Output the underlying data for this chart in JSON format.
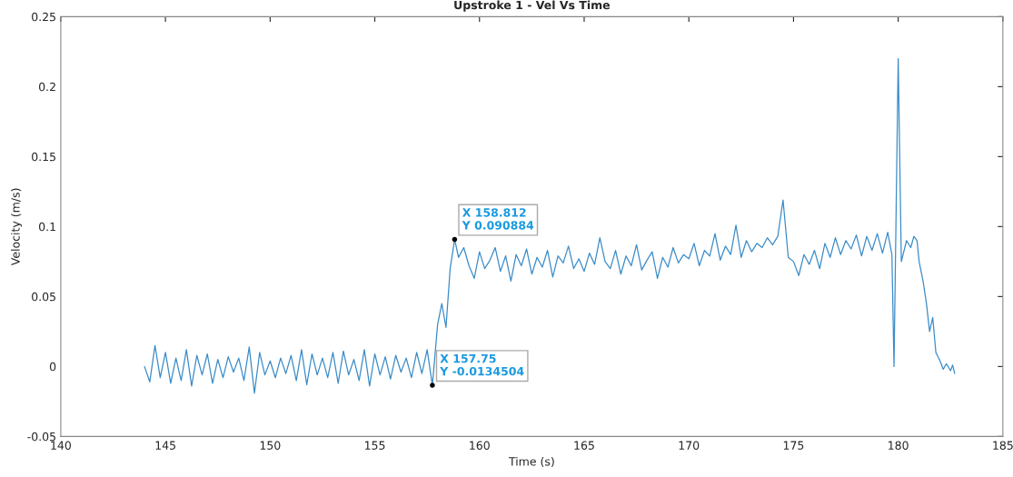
{
  "chart_data": {
    "type": "line",
    "title": "Upstroke 1 - Vel Vs Time",
    "xlabel": "Time (s)",
    "ylabel": "Velocity (m/s)",
    "xlim": [
      140,
      185
    ],
    "xticks": [
      140,
      145,
      150,
      155,
      160,
      165,
      170,
      175,
      180,
      185
    ],
    "ylim": [
      -0.05,
      0.25
    ],
    "yticks": [
      -0.05,
      0,
      0.05,
      0.1,
      0.15,
      0.2,
      0.25
    ],
    "grid": false,
    "legend": false,
    "marker": "none",
    "line_style": "solid",
    "series": [
      {
        "color": "#3a8cc8",
        "x": [
          144.0,
          144.25,
          144.5,
          144.75,
          145.0,
          145.25,
          145.5,
          145.75,
          146.0,
          146.25,
          146.5,
          146.75,
          147.0,
          147.25,
          147.5,
          147.75,
          148.0,
          148.25,
          148.5,
          148.75,
          149.0,
          149.25,
          149.5,
          149.75,
          150.0,
          150.25,
          150.5,
          150.75,
          151.0,
          151.25,
          151.5,
          151.75,
          152.0,
          152.25,
          152.5,
          152.75,
          153.0,
          153.25,
          153.5,
          153.75,
          154.0,
          154.25,
          154.5,
          154.75,
          155.0,
          155.25,
          155.5,
          155.75,
          156.0,
          156.25,
          156.5,
          156.75,
          157.0,
          157.25,
          157.5,
          157.75,
          158.0,
          158.2,
          158.4,
          158.6,
          158.812,
          159.0,
          159.25,
          159.5,
          159.75,
          160.0,
          160.25,
          160.5,
          160.75,
          161.0,
          161.25,
          161.5,
          161.75,
          162.0,
          162.25,
          162.5,
          162.75,
          163.0,
          163.25,
          163.5,
          163.75,
          164.0,
          164.25,
          164.5,
          164.75,
          165.0,
          165.25,
          165.5,
          165.75,
          166.0,
          166.25,
          166.5,
          166.75,
          167.0,
          167.25,
          167.5,
          167.75,
          168.0,
          168.25,
          168.5,
          168.75,
          169.0,
          169.25,
          169.5,
          169.75,
          170.0,
          170.25,
          170.5,
          170.75,
          171.0,
          171.25,
          171.5,
          171.75,
          172.0,
          172.25,
          172.5,
          172.75,
          173.0,
          173.25,
          173.5,
          173.75,
          174.0,
          174.25,
          174.5,
          174.75,
          175.0,
          175.25,
          175.5,
          175.75,
          176.0,
          176.25,
          176.5,
          176.75,
          177.0,
          177.25,
          177.5,
          177.75,
          178.0,
          178.25,
          178.5,
          178.75,
          179.0,
          179.25,
          179.5,
          179.7,
          179.8,
          180.0,
          180.15,
          180.4,
          180.6,
          180.75,
          180.9,
          181.0,
          181.2,
          181.35,
          181.5,
          181.65,
          181.8,
          182.0,
          182.15,
          182.3,
          182.5,
          182.6,
          182.7
        ],
        "values": [
          0,
          -0.011,
          0.015,
          -0.008,
          0.01,
          -0.012,
          0.006,
          -0.01,
          0.012,
          -0.014,
          0.008,
          -0.006,
          0.009,
          -0.012,
          0.005,
          -0.008,
          0.007,
          -0.004,
          0.006,
          -0.01,
          0.014,
          -0.019,
          0.01,
          -0.006,
          0.004,
          -0.008,
          0.006,
          -0.005,
          0.008,
          -0.01,
          0.012,
          -0.013,
          0.009,
          -0.006,
          0.006,
          -0.008,
          0.01,
          -0.012,
          0.011,
          -0.006,
          0.005,
          -0.01,
          0.012,
          -0.014,
          0.009,
          -0.006,
          0.007,
          -0.009,
          0.008,
          -0.004,
          0.006,
          -0.008,
          0.01,
          -0.005,
          0.012,
          -0.0134504,
          0.03,
          0.045,
          0.028,
          0.07,
          0.090884,
          0.078,
          0.085,
          0.072,
          0.063,
          0.082,
          0.07,
          0.076,
          0.085,
          0.068,
          0.079,
          0.061,
          0.08,
          0.072,
          0.084,
          0.066,
          0.078,
          0.071,
          0.083,
          0.064,
          0.079,
          0.074,
          0.086,
          0.07,
          0.077,
          0.068,
          0.081,
          0.073,
          0.092,
          0.075,
          0.07,
          0.083,
          0.066,
          0.079,
          0.072,
          0.087,
          0.069,
          0.076,
          0.082,
          0.063,
          0.078,
          0.071,
          0.085,
          0.074,
          0.08,
          0.077,
          0.088,
          0.072,
          0.083,
          0.079,
          0.095,
          0.076,
          0.086,
          0.08,
          0.101,
          0.078,
          0.09,
          0.082,
          0.088,
          0.085,
          0.092,
          0.087,
          0.093,
          0.119,
          0.078,
          0.075,
          0.065,
          0.08,
          0.073,
          0.083,
          0.07,
          0.088,
          0.078,
          0.092,
          0.08,
          0.09,
          0.084,
          0.094,
          0.079,
          0.093,
          0.083,
          0.095,
          0.081,
          0.096,
          0.08,
          0.0,
          0.22,
          0.075,
          0.09,
          0.085,
          0.093,
          0.09,
          0.075,
          0.06,
          0.045,
          0.025,
          0.035,
          0.01,
          0.004,
          -0.002,
          0.002,
          -0.003,
          0.001,
          -0.005
        ]
      }
    ],
    "annotations": [
      {
        "text": "X 157.75\nY -0.0134504",
        "x": 157.75,
        "y": -0.0134504
      },
      {
        "text": "X 158.812\nY 0.090884",
        "x": 158.812,
        "y": 0.090884
      }
    ]
  }
}
